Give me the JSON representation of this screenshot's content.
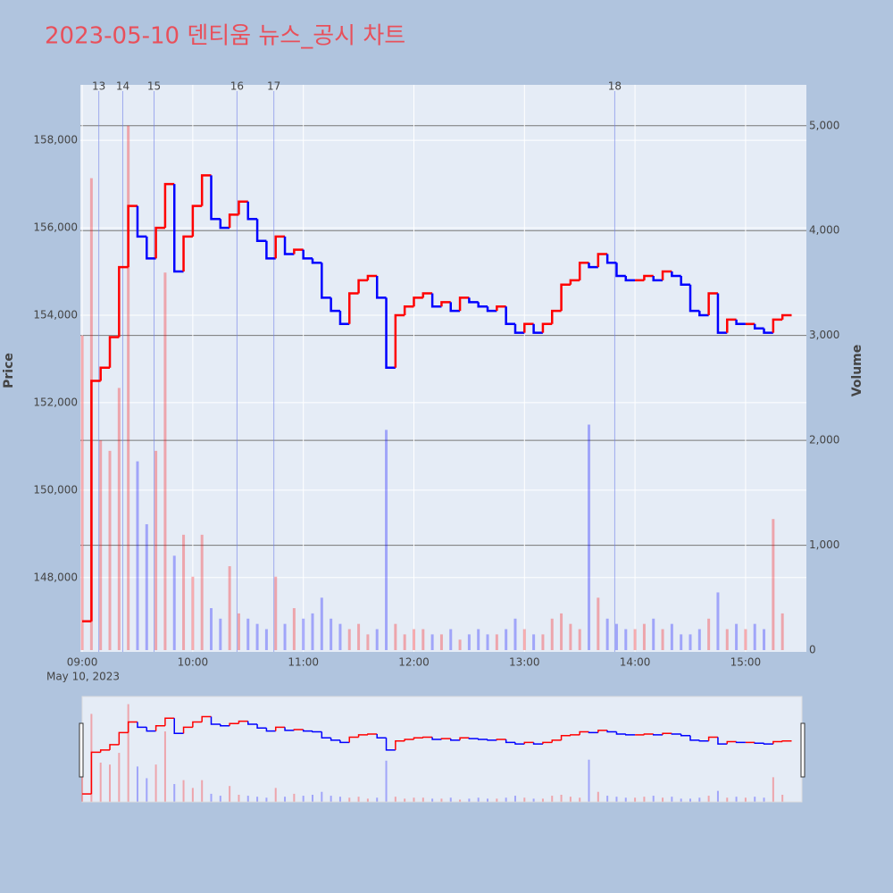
{
  "chart_data": {
    "type": "candlestick-step",
    "title": "2023-05-10 덴티움 뉴스_공시 차트",
    "y_title": "Price",
    "y2_title": "Volume",
    "date_label": "May 10, 2023",
    "increasing_color": "#ff0000",
    "decreasing_color": "#0000ff",
    "x": [
      "09:00",
      "09:05",
      "09:10",
      "09:15",
      "09:20",
      "09:25",
      "09:30",
      "09:35",
      "09:40",
      "09:45",
      "09:50",
      "09:55",
      "10:00",
      "10:05",
      "10:10",
      "10:15",
      "10:20",
      "10:25",
      "10:30",
      "10:35",
      "10:40",
      "10:45",
      "10:50",
      "10:55",
      "11:00",
      "11:05",
      "11:10",
      "11:15",
      "11:20",
      "11:25",
      "11:30",
      "11:35",
      "11:40",
      "11:45",
      "11:50",
      "11:55",
      "12:00",
      "12:05",
      "12:10",
      "12:15",
      "12:20",
      "12:25",
      "12:30",
      "12:35",
      "12:40",
      "12:45",
      "12:50",
      "12:55",
      "13:00",
      "13:05",
      "13:10",
      "13:15",
      "13:20",
      "13:25",
      "13:30",
      "13:35",
      "13:40",
      "13:45",
      "13:50",
      "13:55",
      "14:00",
      "14:05",
      "14:10",
      "14:15",
      "14:20",
      "14:25",
      "14:30",
      "14:35",
      "14:40",
      "14:45",
      "14:50",
      "14:55",
      "15:00",
      "15:05",
      "15:10",
      "15:15",
      "15:20"
    ],
    "series": [
      {
        "name": "Price",
        "values": [
          147000,
          152500,
          152800,
          153500,
          155100,
          156500,
          155800,
          155300,
          156000,
          157000,
          155000,
          155800,
          156500,
          157200,
          156200,
          156000,
          156300,
          156600,
          156200,
          155700,
          155300,
          155800,
          155400,
          155500,
          155300,
          155200,
          154400,
          154100,
          153800,
          154500,
          154800,
          154900,
          154400,
          152800,
          154000,
          154200,
          154400,
          154500,
          154200,
          154300,
          154100,
          154400,
          154300,
          154200,
          154100,
          154200,
          153800,
          153600,
          153800,
          153600,
          153800,
          154100,
          154700,
          154800,
          155200,
          155100,
          155400,
          155200,
          154900,
          154800,
          154800,
          154900,
          154800,
          155000,
          154900,
          154700,
          154100,
          154000,
          154500,
          153600,
          153900,
          153800,
          153800,
          153700,
          153600,
          153900,
          154000
        ]
      },
      {
        "name": "Volume",
        "axis": "y2",
        "values": [
          3000,
          4500,
          2000,
          1900,
          2500,
          5000,
          1800,
          1200,
          1900,
          3600,
          900,
          1100,
          700,
          1100,
          400,
          300,
          800,
          350,
          300,
          250,
          200,
          700,
          250,
          400,
          300,
          350,
          500,
          300,
          250,
          200,
          250,
          150,
          200,
          2100,
          250,
          150,
          200,
          200,
          150,
          150,
          200,
          100,
          150,
          200,
          150,
          150,
          200,
          300,
          200,
          150,
          150,
          300,
          350,
          250,
          200,
          2150,
          500,
          300,
          250,
          200,
          200,
          250,
          300,
          200,
          250,
          150,
          150,
          200,
          300,
          550,
          200,
          250,
          200,
          250,
          200,
          1250,
          350
        ]
      }
    ],
    "xlim": [
      "08:59",
      "15:33"
    ],
    "xticks": [
      "09:00",
      "10:00",
      "11:00",
      "12:00",
      "13:00",
      "14:00",
      "15:00"
    ],
    "ylim": [
      146300,
      159270
    ],
    "yticks": [
      {
        "value": 148000,
        "label": "148,000"
      },
      {
        "value": 150000,
        "label": "150,000"
      },
      {
        "value": 152000,
        "label": "152,000"
      },
      {
        "value": 154000,
        "label": "154,000"
      },
      {
        "value": 156000,
        "label": "156,000"
      },
      {
        "value": 158000,
        "label": "158,000"
      }
    ],
    "y2lim": [
      -17,
      5390
    ],
    "y2ticks": [
      0,
      {
        "value": 1000,
        "label": "1,000"
      },
      {
        "value": 2000,
        "label": "2,000"
      },
      {
        "value": 3000,
        "label": "3,000"
      },
      {
        "value": 4000,
        "label": "4,000"
      },
      {
        "value": 5000,
        "label": "5,000"
      }
    ],
    "annotations": [
      {
        "label": "13",
        "x": "09:09"
      },
      {
        "label": "14",
        "x": "09:22"
      },
      {
        "label": "15",
        "x": "09:39"
      },
      {
        "label": "16",
        "x": "10:24"
      },
      {
        "label": "17",
        "x": "10:44"
      },
      {
        "label": "18",
        "x": "13:49"
      }
    ],
    "grid": true,
    "range_slider": true
  }
}
